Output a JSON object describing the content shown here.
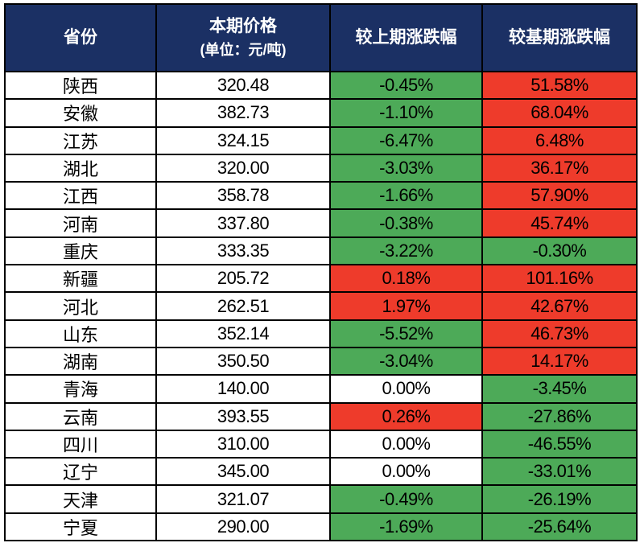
{
  "colors": {
    "header_bg": "#1B3064",
    "header_text": "#FFFFFF",
    "up_red": "#EE3B2B",
    "down_green": "#4DAA58",
    "neutral_white": "#FFFFFF",
    "grid_border": "#000000",
    "body_text": "#000000"
  },
  "table": {
    "header": {
      "province": "省份",
      "price_line1": "本期价格",
      "price_line2": "(单位：元/吨)",
      "chg_prev": "较上期涨跌幅",
      "chg_base": "较基期涨跌幅"
    }
  },
  "chart_data": {
    "type": "table",
    "columns": [
      "省份",
      "本期价格(单位：元/吨)",
      "较上期涨跌幅",
      "较基期涨跌幅"
    ],
    "color_legend": {
      "green": "decline/negative",
      "red": "rise/positive",
      "white": "no change"
    },
    "rows": [
      {
        "province": "陕西",
        "price": "320.48",
        "chg_prev": "-0.45%",
        "chg_prev_color": "green",
        "chg_base": "51.58%",
        "chg_base_color": "red"
      },
      {
        "province": "安徽",
        "price": "382.73",
        "chg_prev": "-1.10%",
        "chg_prev_color": "green",
        "chg_base": "68.04%",
        "chg_base_color": "red"
      },
      {
        "province": "江苏",
        "price": "324.15",
        "chg_prev": "-6.47%",
        "chg_prev_color": "green",
        "chg_base": "6.48%",
        "chg_base_color": "red"
      },
      {
        "province": "湖北",
        "price": "320.00",
        "chg_prev": "-3.03%",
        "chg_prev_color": "green",
        "chg_base": "36.17%",
        "chg_base_color": "red"
      },
      {
        "province": "江西",
        "price": "358.78",
        "chg_prev": "-1.66%",
        "chg_prev_color": "green",
        "chg_base": "57.90%",
        "chg_base_color": "red"
      },
      {
        "province": "河南",
        "price": "337.80",
        "chg_prev": "-0.38%",
        "chg_prev_color": "green",
        "chg_base": "45.74%",
        "chg_base_color": "red"
      },
      {
        "province": "重庆",
        "price": "333.35",
        "chg_prev": "-3.22%",
        "chg_prev_color": "green",
        "chg_base": "-0.30%",
        "chg_base_color": "green"
      },
      {
        "province": "新疆",
        "price": "205.72",
        "chg_prev": "0.18%",
        "chg_prev_color": "red",
        "chg_base": "101.16%",
        "chg_base_color": "red"
      },
      {
        "province": "河北",
        "price": "262.51",
        "chg_prev": "1.97%",
        "chg_prev_color": "red",
        "chg_base": "42.67%",
        "chg_base_color": "red"
      },
      {
        "province": "山东",
        "price": "352.14",
        "chg_prev": "-5.52%",
        "chg_prev_color": "green",
        "chg_base": "46.73%",
        "chg_base_color": "red"
      },
      {
        "province": "湖南",
        "price": "350.50",
        "chg_prev": "-3.04%",
        "chg_prev_color": "green",
        "chg_base": "14.17%",
        "chg_base_color": "red"
      },
      {
        "province": "青海",
        "price": "140.00",
        "chg_prev": "0.00%",
        "chg_prev_color": "white",
        "chg_base": "-3.45%",
        "chg_base_color": "green"
      },
      {
        "province": "云南",
        "price": "393.55",
        "chg_prev": "0.26%",
        "chg_prev_color": "red",
        "chg_base": "-27.86%",
        "chg_base_color": "green"
      },
      {
        "province": "四川",
        "price": "310.00",
        "chg_prev": "0.00%",
        "chg_prev_color": "white",
        "chg_base": "-46.55%",
        "chg_base_color": "green"
      },
      {
        "province": "辽宁",
        "price": "345.00",
        "chg_prev": "0.00%",
        "chg_prev_color": "white",
        "chg_base": "-33.01%",
        "chg_base_color": "green"
      },
      {
        "province": "天津",
        "price": "321.07",
        "chg_prev": "-0.49%",
        "chg_prev_color": "green",
        "chg_base": "-26.19%",
        "chg_base_color": "green"
      },
      {
        "province": "宁夏",
        "price": "290.00",
        "chg_prev": "-1.69%",
        "chg_prev_color": "green",
        "chg_base": "-25.64%",
        "chg_base_color": "green"
      }
    ]
  }
}
